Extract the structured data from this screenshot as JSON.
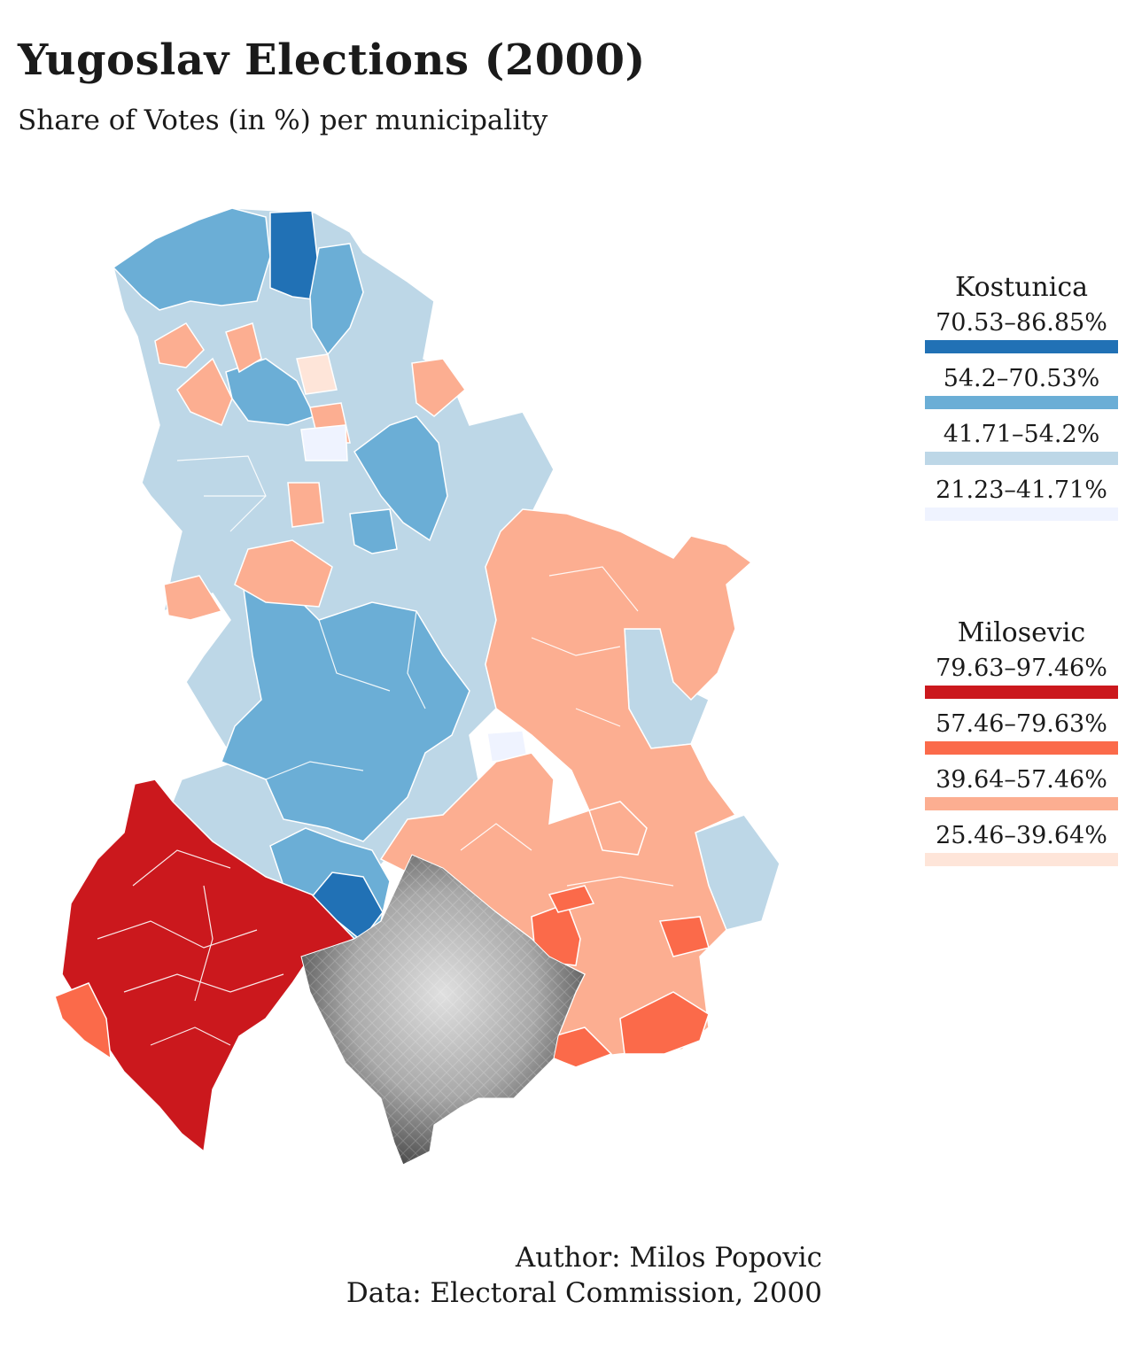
{
  "title": "Yugoslav Elections (2000)",
  "subtitle": "Share of Votes (in %) per municipality",
  "colors": {
    "kostunica": [
      "#2171b5",
      "#6baed6",
      "#bdd7e7",
      "#eff3ff"
    ],
    "milosevic": [
      "#cb181d",
      "#fb6a4a",
      "#fcae91",
      "#fee5d9"
    ],
    "kosovo_relief_light": "#d9d9d9",
    "kosovo_relief_dark": "#4a4a4a",
    "border": "#ffffff"
  },
  "legends": {
    "kostunica": {
      "title": "Kostunica",
      "items": [
        {
          "range": "70.53–86.85%",
          "color": "#2171b5"
        },
        {
          "range": "54.2–70.53%",
          "color": "#6baed6"
        },
        {
          "range": "41.71–54.2%",
          "color": "#bdd7e7"
        },
        {
          "range": "21.23–41.71%",
          "color": "#eff3ff"
        }
      ]
    },
    "milosevic": {
      "title": "Milosevic",
      "items": [
        {
          "range": "79.63–97.46%",
          "color": "#cb181d"
        },
        {
          "range": "57.46–79.63%",
          "color": "#fb6a4a"
        },
        {
          "range": "39.64–57.46%",
          "color": "#fcae91"
        },
        {
          "range": "25.46–39.64%",
          "color": "#fee5d9"
        }
      ]
    }
  },
  "credits": {
    "author": "Author: Milos Popovic",
    "data": "Data: Electoral Commission, 2000"
  }
}
